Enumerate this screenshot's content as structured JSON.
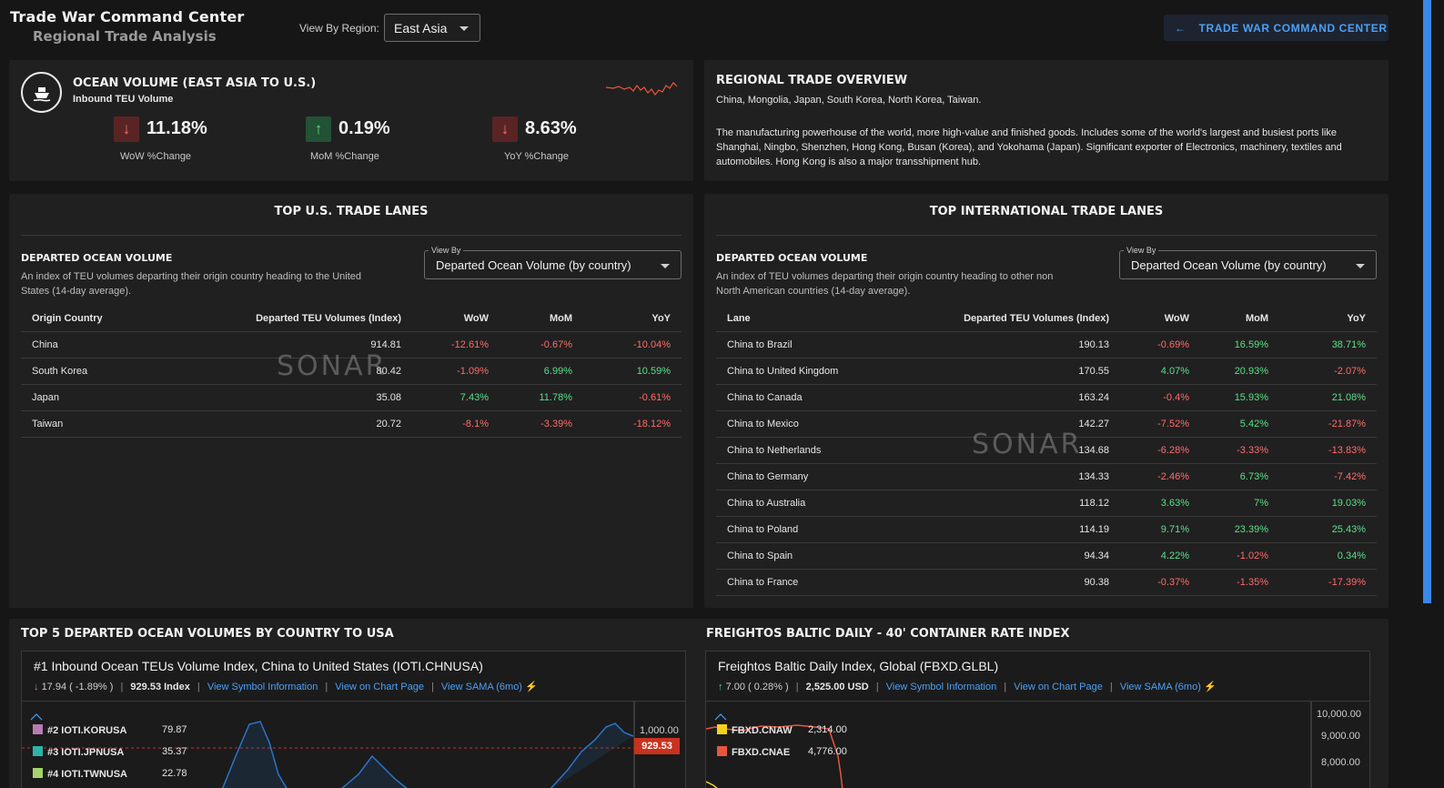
{
  "header": {
    "title": "Trade War Command Center",
    "subtitle": "Regional Trade Analysis",
    "region_label": "View By Region:",
    "region_value": "East Asia",
    "back_button": "TRADE WAR COMMAND CENTER"
  },
  "ocean_volume": {
    "title": "OCEAN VOLUME (EAST ASIA TO U.S.)",
    "subtitle": "Inbound TEU Volume",
    "kpis": [
      {
        "value": "11.18%",
        "label": "WoW %Change",
        "direction": "down"
      },
      {
        "value": "0.19%",
        "label": "MoM %Change",
        "direction": "up"
      },
      {
        "value": "8.63%",
        "label": "YoY %Change",
        "direction": "down"
      }
    ]
  },
  "overview": {
    "title": "REGIONAL TRADE OVERVIEW",
    "countries": "China, Mongolia, Japan, South Korea, North Korea, Taiwan.",
    "description": "The manufacturing powerhouse of the world, more high-value and finished goods. Includes some of the world's largest and busiest ports like Shanghai, Ningbo, Shenzhen, Hong Kong, Busan (Korea), and Yokohama (Japan). Significant exporter of Electronics, machinery, textiles and automobiles. Hong Kong is also a major transshipment hub."
  },
  "us_lanes": {
    "title": "TOP U.S. TRADE LANES",
    "section_title": "DEPARTED OCEAN VOLUME",
    "description": "An index of TEU volumes departing their origin country heading to the United States (14-day average).",
    "view_by_label": "View By",
    "view_by_value": "Departed Ocean Volume (by country)",
    "columns": [
      "Origin Country",
      "Departed TEU Volumes (Index)",
      "WoW",
      "MoM",
      "YoY"
    ],
    "rows": [
      {
        "name": "China",
        "index": "914.81",
        "wow": "-12.61%",
        "mom": "-0.67%",
        "yoy": "-10.04%"
      },
      {
        "name": "South Korea",
        "index": "80.42",
        "wow": "-1.09%",
        "mom": "6.99%",
        "yoy": "10.59%"
      },
      {
        "name": "Japan",
        "index": "35.08",
        "wow": "7.43%",
        "mom": "11.78%",
        "yoy": "-0.61%"
      },
      {
        "name": "Taiwan",
        "index": "20.72",
        "wow": "-8.1%",
        "mom": "-3.39%",
        "yoy": "-18.12%"
      }
    ],
    "watermark": "SONAR"
  },
  "intl_lanes": {
    "title": "TOP INTERNATIONAL TRADE LANES",
    "section_title": "DEPARTED OCEAN VOLUME",
    "description": "An index of TEU volumes departing their origin country heading to other non North American countries (14-day average).",
    "view_by_label": "View By",
    "view_by_value": "Departed Ocean Volume (by country)",
    "columns": [
      "Lane",
      "Departed TEU Volumes (Index)",
      "WoW",
      "MoM",
      "YoY"
    ],
    "rows": [
      {
        "name": "China to Brazil",
        "index": "190.13",
        "wow": "-0.69%",
        "mom": "16.59%",
        "yoy": "38.71%"
      },
      {
        "name": "China to United Kingdom",
        "index": "170.55",
        "wow": "4.07%",
        "mom": "20.93%",
        "yoy": "-2.07%"
      },
      {
        "name": "China to Canada",
        "index": "163.24",
        "wow": "-0.4%",
        "mom": "15.93%",
        "yoy": "21.08%"
      },
      {
        "name": "China to Mexico",
        "index": "142.27",
        "wow": "-7.52%",
        "mom": "5.42%",
        "yoy": "-21.87%"
      },
      {
        "name": "China to Netherlands",
        "index": "134.68",
        "wow": "-6.28%",
        "mom": "-3.33%",
        "yoy": "-13.83%"
      },
      {
        "name": "China to Germany",
        "index": "134.33",
        "wow": "-2.46%",
        "mom": "6.73%",
        "yoy": "-7.42%"
      },
      {
        "name": "China to Australia",
        "index": "118.12",
        "wow": "3.63%",
        "mom": "7%",
        "yoy": "19.03%"
      },
      {
        "name": "China to Poland",
        "index": "114.19",
        "wow": "9.71%",
        "mom": "23.39%",
        "yoy": "25.43%"
      },
      {
        "name": "China to Spain",
        "index": "94.34",
        "wow": "4.22%",
        "mom": "-1.02%",
        "yoy": "0.34%"
      },
      {
        "name": "China to France",
        "index": "90.38",
        "wow": "-0.37%",
        "mom": "-1.35%",
        "yoy": "-17.39%"
      }
    ],
    "watermark": "SONAR"
  },
  "bottom": {
    "left_title": "TOP 5 DEPARTED OCEAN VOLUMES BY COUNTRY TO USA",
    "right_title": "FREIGHTOS BALTIC DAILY - 40' CONTAINER RATE INDEX",
    "chart1": {
      "name": "#1 Inbound Ocean TEUs Volume Index, China to United States (IOTI.CHNUSA)",
      "change": "17.94 ( -1.89% )",
      "change_direction": "down",
      "level": "929.53 Index",
      "link1": "View Symbol Information",
      "link2": "View on Chart Page",
      "link3": "View SAMA (6mo)",
      "legend": [
        {
          "label": "#2 IOTI.KORUSA",
          "value": "79.87",
          "color": "#b77bb4"
        },
        {
          "label": "#3 IOTI.JPNUSA",
          "value": "35.37",
          "color": "#2bb5a8"
        },
        {
          "label": "#4 IOTI.TWNUSA",
          "value": "22.78",
          "color": "#a5d46a"
        }
      ],
      "axis_top": "1,000.00",
      "price_tag": "929.53"
    },
    "chart2": {
      "name": "Freightos Baltic Daily Index, Global (FBXD.GLBL)",
      "change": "7.00 ( 0.28% )",
      "change_direction": "up",
      "level": "2,525.00 USD",
      "link1": "View Symbol Information",
      "link2": "View on Chart Page",
      "link3": "View SAMA (6mo)",
      "legend": [
        {
          "label": "FBXD.CNAW",
          "value": "2,314.00",
          "color": "#f2d21b"
        },
        {
          "label": "FBXD.CNAE",
          "value": "4,776.00",
          "color": "#e8553f"
        }
      ],
      "axis_labels": [
        "10,000.00",
        "9,000.00",
        "8,000.00"
      ]
    }
  },
  "colors": {
    "negative": "#ff6b6b",
    "positive": "#5be08a",
    "link": "#4aa0f5",
    "price_tag": "#c8321e"
  },
  "icons": {
    "ship": "ship-icon",
    "back": "arrow-left-icon",
    "trend_down": "arrow-down-icon",
    "trend_up": "arrow-up-icon",
    "dropdown": "chevron-down-icon",
    "sama": "sama-icon"
  }
}
